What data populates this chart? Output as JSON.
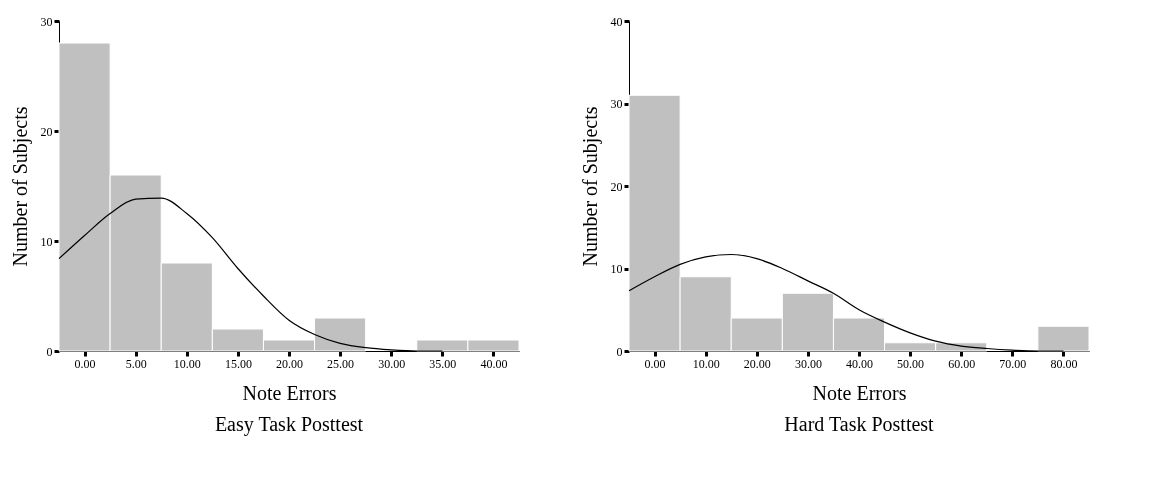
{
  "chart_data": [
    {
      "type": "histogram",
      "title": "Easy Task Posttest",
      "xlabel": "Note Errors",
      "ylabel": "Number of Subjects",
      "color": "#c0c0c0",
      "grid": false,
      "legend": false,
      "bins": [
        -2.5,
        2.5,
        7.5,
        12.5,
        17.5,
        22.5,
        27.5,
        32.5,
        37.5,
        42.5
      ],
      "values": [
        28,
        16,
        8,
        2,
        1,
        3,
        0,
        1,
        1
      ],
      "xlim": [
        -2.5,
        42.5
      ],
      "ylim": [
        0,
        30
      ],
      "xticks": [
        {
          "value": 0,
          "label": "0.00"
        },
        {
          "value": 5,
          "label": "5.00"
        },
        {
          "value": 10,
          "label": "10.00"
        },
        {
          "value": 15,
          "label": "15.00"
        },
        {
          "value": 20,
          "label": "20.00"
        },
        {
          "value": 25,
          "label": "25.00"
        },
        {
          "value": 30,
          "label": "30.00"
        },
        {
          "value": 35,
          "label": "35.00"
        },
        {
          "value": 40,
          "label": "40.00"
        }
      ],
      "yticks": [
        0,
        10,
        20,
        30
      ],
      "series": [
        {
          "type": "line",
          "color": "#000000",
          "x": [
            -2.5,
            0,
            2.5,
            5,
            7.5,
            10,
            12.5,
            15,
            17.5,
            20,
            22.5,
            25,
            27.5,
            30,
            32.5,
            35
          ],
          "values": [
            8.4,
            10.5,
            12.5,
            13.8,
            13.9,
            12.5,
            10.3,
            7.5,
            5,
            2.8,
            1.5,
            0.7,
            0.3,
            0.1,
            0,
            0
          ]
        }
      ]
    },
    {
      "type": "histogram",
      "title": "Hard Task Posttest",
      "xlabel": "Note Errors",
      "ylabel": "Number of Subjects",
      "color": "#c0c0c0",
      "grid": false,
      "legend": false,
      "bins": [
        -5,
        5,
        15,
        25,
        35,
        45,
        55,
        65,
        75,
        85
      ],
      "values": [
        31,
        9,
        4,
        7,
        4,
        1,
        1,
        0,
        3
      ],
      "xlim": [
        -5,
        85
      ],
      "ylim": [
        0,
        40
      ],
      "xticks": [
        {
          "value": 0,
          "label": "0.00"
        },
        {
          "value": 10,
          "label": "10.00"
        },
        {
          "value": 20,
          "label": "20.00"
        },
        {
          "value": 30,
          "label": "30.00"
        },
        {
          "value": 40,
          "label": "40.00"
        },
        {
          "value": 50,
          "label": "50.00"
        },
        {
          "value": 60,
          "label": "60.00"
        },
        {
          "value": 70,
          "label": "70.00"
        },
        {
          "value": 80,
          "label": "80.00"
        }
      ],
      "yticks": [
        0,
        10,
        20,
        30,
        40
      ],
      "series": [
        {
          "type": "line",
          "color": "#000000",
          "x": [
            -5,
            0,
            5,
            10,
            15,
            20,
            25,
            30,
            35,
            40,
            45,
            50,
            55,
            60,
            65,
            70,
            75,
            80
          ],
          "values": [
            7.3,
            9,
            10.5,
            11.4,
            11.7,
            11.2,
            10,
            8.5,
            7,
            5,
            3.5,
            2.2,
            1.2,
            0.6,
            0.3,
            0.1,
            0,
            0
          ]
        }
      ]
    }
  ]
}
